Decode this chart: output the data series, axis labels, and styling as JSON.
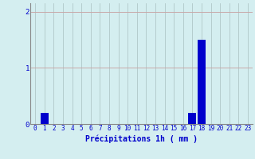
{
  "hours": [
    0,
    1,
    2,
    3,
    4,
    5,
    6,
    7,
    8,
    9,
    10,
    11,
    12,
    13,
    14,
    15,
    16,
    17,
    18,
    19,
    20,
    21,
    22,
    23
  ],
  "values": [
    0,
    0.2,
    0,
    0,
    0,
    0,
    0,
    0,
    0,
    0,
    0,
    0,
    0,
    0,
    0,
    0,
    0,
    0.2,
    1.5,
    0,
    0,
    0,
    0,
    0
  ],
  "bar_color": "#0000cc",
  "background_color": "#d4eef0",
  "grid_color_h": "#c8a8a8",
  "grid_color_v": "#a8c0c0",
  "xlabel": "Précipitations 1h ( mm )",
  "xlabel_color": "#0000cc",
  "tick_color": "#0000cc",
  "ylim": [
    0,
    2.15
  ],
  "yticks": [
    0,
    1,
    2
  ],
  "bar_width": 0.85
}
